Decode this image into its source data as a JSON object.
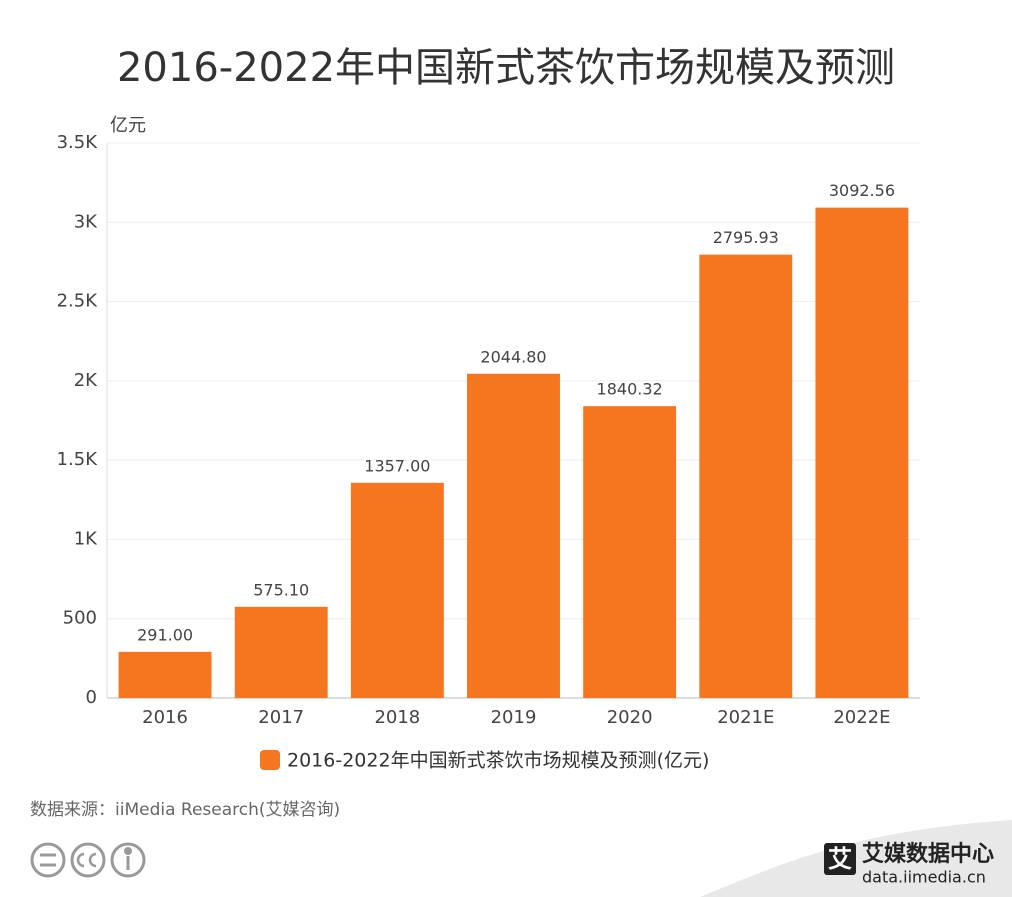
{
  "chart_data": {
    "type": "bar",
    "title": "2016-2022年中国新式茶饮市场规模及预测",
    "y_label": "亿元",
    "categories": [
      "2016",
      "2017",
      "2018",
      "2019",
      "2020",
      "2021E",
      "2022E"
    ],
    "series": [
      {
        "name": "2016-2022年中国新式茶饮市场规模及预测(亿元)",
        "color": "#f5761e",
        "values": [
          291,
          575.1,
          1357,
          2044.8,
          1840.32,
          2795.93,
          3092.56
        ],
        "value_labels": [
          "291.00",
          "575.10",
          "1357.00",
          "2044.80",
          "1840.32",
          "2795.93",
          "3092.56"
        ]
      }
    ],
    "ylim": [
      0,
      3500
    ],
    "yticks": [
      0,
      500,
      {
        "value": 1000,
        "label": "1K"
      },
      {
        "value": 1500,
        "label": "1.5K"
      },
      {
        "value": 2000,
        "label": "2K"
      },
      {
        "value": 2500,
        "label": "2.5K"
      },
      {
        "value": 3000,
        "label": "3K"
      },
      {
        "value": 3500,
        "label": "3.5K"
      }
    ],
    "grid": true,
    "source": "数据来源：iiMedia Research(艾媒咨询)",
    "logo_icon": "艾",
    "logo_title": "艾媒数据中心",
    "logo_url": "data.iimedia.cn"
  }
}
